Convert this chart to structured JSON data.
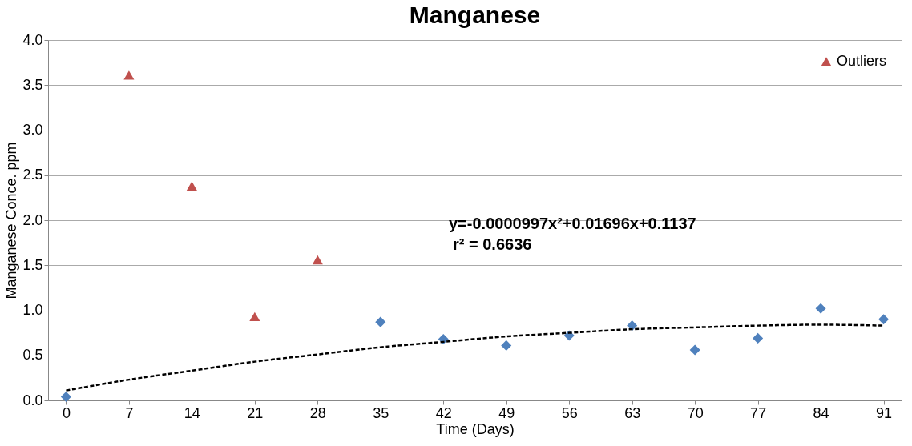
{
  "chart_data": {
    "type": "scatter",
    "title": "Manganese",
    "xlabel": "Time (Days)",
    "ylabel": "Manganese Conce.  ppm",
    "xlim": [
      -2,
      93
    ],
    "xticks": [
      0,
      7,
      14,
      21,
      28,
      35,
      42,
      49,
      56,
      63,
      70,
      77,
      84,
      91
    ],
    "ylim": [
      0,
      4.0
    ],
    "yticks": [
      {
        "value": 0,
        "label": "0.0"
      },
      {
        "value": 0.5,
        "label": "0.5"
      },
      {
        "value": 1,
        "label": "1.0"
      },
      {
        "value": 1.5,
        "label": "1.5"
      },
      {
        "value": 2,
        "label": "2.0"
      },
      {
        "value": 2.5,
        "label": "2.5"
      },
      {
        "value": 3,
        "label": "3.0"
      },
      {
        "value": 3.5,
        "label": "3.5"
      },
      {
        "value": 4,
        "label": "4.0"
      }
    ],
    "grid": "y",
    "legend": "top right",
    "annotations": [
      "y=-0.0000997x²+0.01696x+0.1137",
      "r² = 0.6636"
    ],
    "series": [
      {
        "marker": "diamond",
        "color": "#4f81bd",
        "x": [
          0,
          35,
          42,
          49,
          56,
          63,
          70,
          77,
          84,
          91
        ],
        "values": [
          0.04,
          0.87,
          0.68,
          0.61,
          0.72,
          0.83,
          0.56,
          0.69,
          1.02,
          0.9
        ]
      },
      {
        "marker": "triangle",
        "name": "Outliers",
        "color": "#c0504d",
        "x": [
          7,
          14,
          21,
          28
        ],
        "values": [
          3.61,
          2.38,
          0.93,
          1.56
        ]
      },
      {
        "type": "line",
        "line_style": "dashed",
        "color": "#000000",
        "x": [
          0,
          7,
          14,
          21,
          28,
          35,
          42,
          49,
          56,
          63,
          70,
          77,
          84,
          91
        ],
        "values": [
          0.11,
          0.23,
          0.33,
          0.43,
          0.51,
          0.59,
          0.65,
          0.71,
          0.75,
          0.79,
          0.81,
          0.83,
          0.84,
          0.83
        ]
      }
    ]
  }
}
